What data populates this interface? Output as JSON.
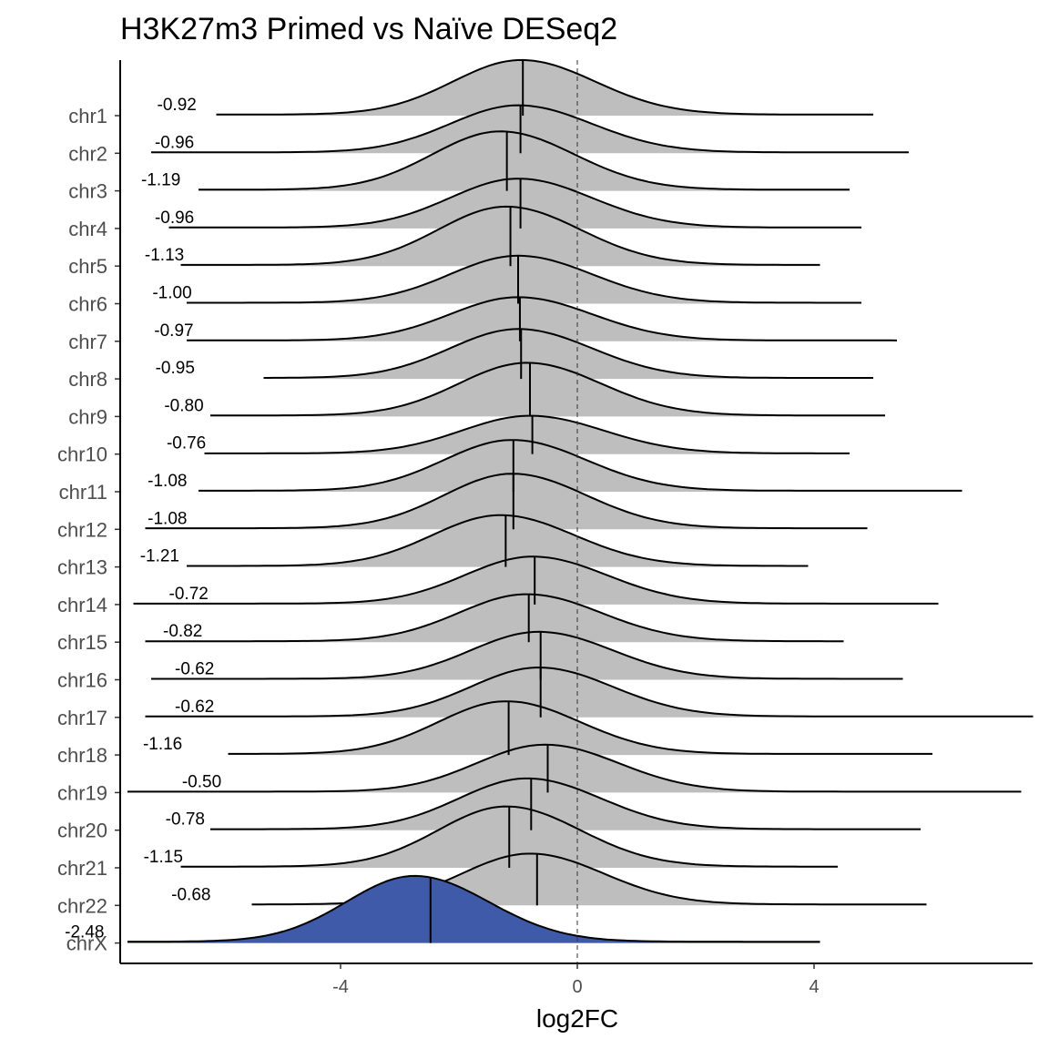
{
  "chart_data": {
    "type": "ridgeline",
    "title": "H3K27m3 Primed vs Naïve DESeq2",
    "xlabel": "log2FC",
    "ylabel": "",
    "xlim": [
      -7.5,
      7.7
    ],
    "xticks": [
      -4,
      0,
      4
    ],
    "reference_line_x": 0,
    "colors": {
      "default_fill": "#bebebe",
      "highlight_fill": "#3f5aa8",
      "line": "#000000"
    },
    "ridges": [
      {
        "label": "chr1",
        "median": -0.92,
        "median_label": "-0.92",
        "min": -6.1,
        "max": 5.0,
        "peak": -0.95,
        "peak_height": 1.45,
        "highlight": false
      },
      {
        "label": "chr2",
        "median": -0.96,
        "median_label": "-0.96",
        "min": -7.2,
        "max": 5.6,
        "peak": -1.0,
        "peak_height": 1.25,
        "highlight": false
      },
      {
        "label": "chr3",
        "median": -1.19,
        "median_label": "-1.19",
        "min": -6.4,
        "max": 4.6,
        "peak": -1.3,
        "peak_height": 1.55,
        "highlight": false
      },
      {
        "label": "chr4",
        "median": -0.96,
        "median_label": "-0.96",
        "min": -6.9,
        "max": 4.8,
        "peak": -1.0,
        "peak_height": 1.3,
        "highlight": false
      },
      {
        "label": "chr5",
        "median": -1.13,
        "median_label": "-1.13",
        "min": -6.7,
        "max": 4.1,
        "peak": -1.2,
        "peak_height": 1.55,
        "highlight": false
      },
      {
        "label": "chr6",
        "median": -1.0,
        "median_label": "-1.00",
        "min": -6.6,
        "max": 4.8,
        "peak": -1.0,
        "peak_height": 1.25,
        "highlight": false
      },
      {
        "label": "chr7",
        "median": -0.97,
        "median_label": "-0.97",
        "min": -6.6,
        "max": 5.4,
        "peak": -1.0,
        "peak_height": 1.15,
        "highlight": false
      },
      {
        "label": "chr8",
        "median": -0.95,
        "median_label": "-0.95",
        "min": -5.3,
        "max": 5.0,
        "peak": -1.0,
        "peak_height": 1.3,
        "highlight": false
      },
      {
        "label": "chr9",
        "median": -0.8,
        "median_label": "-0.80",
        "min": -6.2,
        "max": 5.2,
        "peak": -0.85,
        "peak_height": 1.4,
        "highlight": false
      },
      {
        "label": "chr10",
        "median": -0.76,
        "median_label": "-0.76",
        "min": -6.3,
        "max": 4.6,
        "peak": -0.8,
        "peak_height": 1.0,
        "highlight": false
      },
      {
        "label": "chr11",
        "median": -1.08,
        "median_label": "-1.08",
        "min": -6.4,
        "max": 6.5,
        "peak": -1.1,
        "peak_height": 1.35,
        "highlight": false
      },
      {
        "label": "chr12",
        "median": -1.08,
        "median_label": "-1.08",
        "min": -7.3,
        "max": 4.9,
        "peak": -1.1,
        "peak_height": 1.45,
        "highlight": false
      },
      {
        "label": "chr13",
        "median": -1.21,
        "median_label": "-1.21",
        "min": -6.6,
        "max": 3.9,
        "peak": -1.3,
        "peak_height": 1.35,
        "highlight": false
      },
      {
        "label": "chr14",
        "median": -0.72,
        "median_label": "-0.72",
        "min": -7.5,
        "max": 6.1,
        "peak": -0.75,
        "peak_height": 1.25,
        "highlight": false
      },
      {
        "label": "chr15",
        "median": -0.82,
        "median_label": "-0.82",
        "min": -7.3,
        "max": 4.5,
        "peak": -0.85,
        "peak_height": 1.25,
        "highlight": false
      },
      {
        "label": "chr16",
        "median": -0.62,
        "median_label": "-0.62",
        "min": -7.2,
        "max": 5.5,
        "peak": -0.65,
        "peak_height": 1.25,
        "highlight": false
      },
      {
        "label": "chr17",
        "median": -0.62,
        "median_label": "-0.62",
        "min": -7.3,
        "max": 7.7,
        "peak": -0.65,
        "peak_height": 1.3,
        "highlight": false
      },
      {
        "label": "chr18",
        "median": -1.16,
        "median_label": "-1.16",
        "min": -5.9,
        "max": 6.0,
        "peak": -1.2,
        "peak_height": 1.4,
        "highlight": false
      },
      {
        "label": "chr19",
        "median": -0.5,
        "median_label": "-0.50",
        "min": -7.6,
        "max": 7.5,
        "peak": -0.55,
        "peak_height": 1.25,
        "highlight": false
      },
      {
        "label": "chr20",
        "median": -0.78,
        "median_label": "-0.78",
        "min": -6.2,
        "max": 5.8,
        "peak": -0.85,
        "peak_height": 1.35,
        "highlight": false
      },
      {
        "label": "chr21",
        "median": -1.15,
        "median_label": "-1.15",
        "min": -6.7,
        "max": 4.4,
        "peak": -1.2,
        "peak_height": 1.6,
        "highlight": false
      },
      {
        "label": "chr22",
        "median": -0.68,
        "median_label": "-0.68",
        "min": -5.5,
        "max": 5.9,
        "peak": -0.8,
        "peak_height": 1.35,
        "highlight": false
      },
      {
        "label": "chrX",
        "median": -2.48,
        "median_label": "-2.48",
        "min": -7.6,
        "max": 4.1,
        "peak": -2.75,
        "peak_height": 1.75,
        "highlight": true
      }
    ]
  }
}
